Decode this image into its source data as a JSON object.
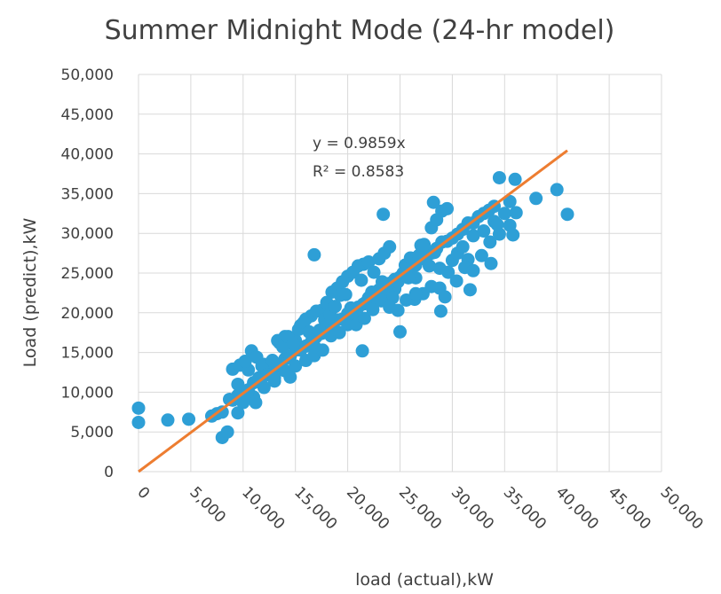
{
  "chart_data": {
    "type": "scatter",
    "title": "Summer Midnight Mode (24-hr model)",
    "xlabel": "load (actual),kW",
    "ylabel": "Load (predict),kW",
    "xlim": [
      0,
      50000
    ],
    "ylim": [
      0,
      50000
    ],
    "x_ticks": [
      "0",
      "5,000",
      "10,000",
      "15,000",
      "20,000",
      "25,000",
      "30,000",
      "35,000",
      "40,000",
      "45,000",
      "50,000"
    ],
    "y_ticks": [
      "0",
      "5,000",
      "10,000",
      "15,000",
      "20,000",
      "25,000",
      "30,000",
      "35,000",
      "40,000",
      "45,000",
      "50,000"
    ],
    "grid": true,
    "legend": "none",
    "point_color": "#2e9fd6",
    "trendline": {
      "color": "#ed7d31",
      "slope": 0.9859,
      "x_range": [
        0,
        41000
      ],
      "equation": "y = 0.9859x",
      "r_squared": "R² = 0.8583"
    },
    "series": [
      {
        "x": [
          0,
          0,
          2800,
          4800,
          7000,
          7500,
          8000,
          8500,
          9000,
          9500,
          10000,
          10500,
          11000,
          11500,
          12000,
          12500,
          13000,
          13500,
          14000,
          14500,
          15000,
          15500,
          16000,
          16500,
          17000,
          17500,
          18000,
          18500,
          19000,
          19500,
          20000,
          20500,
          21000,
          21500,
          22000,
          22500,
          23000,
          23500,
          24000,
          24500,
          25000,
          25500,
          26000,
          26500,
          27000,
          27500,
          28000,
          28500,
          29000,
          29500,
          30000,
          30500,
          31000,
          31500,
          32000,
          32500,
          33000,
          33500,
          34000,
          34500,
          35000,
          35500,
          36000,
          38000,
          40000,
          41000,
          8000,
          8700,
          9500,
          10500,
          12000,
          13500,
          14000,
          15000,
          15500,
          16000,
          16500,
          17000,
          17500,
          18000,
          18500,
          19000,
          19500,
          20000,
          20500,
          21000,
          21500,
          22000,
          22500,
          23000,
          23500,
          24000,
          24500,
          25000,
          25500,
          26000,
          26500,
          27000,
          27500,
          28000,
          28500,
          29000,
          29500,
          30000,
          30500,
          31000,
          31500,
          32000,
          33000,
          34000,
          9000,
          9700,
          10200,
          10800,
          11300,
          11800,
          12300,
          12800,
          13300,
          13800,
          14300,
          14800,
          15300,
          15800,
          16300,
          16800,
          17300,
          17800,
          18300,
          18800,
          19300,
          19800,
          20300,
          20800,
          21300,
          21800,
          22300,
          22800,
          23300,
          23800,
          24300,
          24800,
          25300,
          25800,
          26300,
          26800,
          27300,
          27800,
          28300,
          28800,
          9500,
          10000,
          11000,
          12000,
          13000,
          14000,
          15000,
          16000,
          16800,
          17600,
          18400,
          19200,
          20000,
          20800,
          21600,
          22400,
          23200,
          24000,
          24800,
          25600,
          26400,
          27200,
          28000,
          28800,
          29600,
          30400,
          31200,
          32000,
          32800,
          33600,
          34500,
          35500,
          9800,
          10400,
          11200,
          13000,
          14500,
          16800,
          23400,
          21400,
          25000,
          26500,
          28200,
          29300,
          31700,
          33700,
          34300,
          35800,
          36100,
          28900
        ],
        "y": [
          8000,
          6200,
          6500,
          6600,
          7000,
          7300,
          4300,
          5000,
          9000,
          9600,
          10100,
          10300,
          11200,
          11800,
          12100,
          12700,
          13100,
          13300,
          14200,
          14500,
          15300,
          15300,
          15800,
          16300,
          17000,
          17400,
          17600,
          18400,
          19100,
          19200,
          19900,
          20400,
          20700,
          21100,
          21900,
          22100,
          22900,
          23100,
          23700,
          24200,
          24500,
          25300,
          25600,
          26000,
          26800,
          27300,
          27500,
          28100,
          28900,
          29000,
          29400,
          29900,
          30500,
          31300,
          31300,
          32100,
          32500,
          32900,
          33400,
          37000,
          32500,
          34000,
          36800,
          34400,
          35500,
          32400,
          7500,
          9100,
          11000,
          12800,
          13500,
          16200,
          17000,
          16500,
          18400,
          19200,
          19600,
          20200,
          20300,
          21300,
          22600,
          23100,
          23900,
          24600,
          25100,
          25900,
          26100,
          26400,
          25100,
          26800,
          27500,
          28300,
          23000,
          24400,
          26000,
          26900,
          24400,
          28500,
          27300,
          30700,
          31700,
          32800,
          33100,
          26600,
          27500,
          28300,
          26700,
          29700,
          30300,
          31500,
          12900,
          13400,
          13900,
          15200,
          14400,
          13300,
          12200,
          14000,
          16500,
          15700,
          17000,
          16100,
          17900,
          18800,
          17600,
          15800,
          17800,
          19100,
          19800,
          20800,
          22200,
          22300,
          20600,
          19200,
          24100,
          21400,
          22600,
          21700,
          23900,
          22600,
          21900,
          23900,
          25000,
          24400,
          26800,
          27200,
          28600,
          25900,
          27600,
          25600,
          7400,
          8700,
          9400,
          10600,
          11400,
          12700,
          13300,
          14000,
          14600,
          15300,
          17100,
          17500,
          18500,
          18500,
          19300,
          20400,
          21500,
          20700,
          20300,
          21600,
          21700,
          22400,
          23300,
          23100,
          25100,
          24000,
          25700,
          25300,
          27200,
          28900,
          29900,
          31000,
          10300,
          9600,
          8700,
          11800,
          11900,
          27300,
          32400,
          15200,
          17600,
          22400,
          33900,
          22000,
          22900,
          26200,
          31100,
          29800,
          32600,
          20200
        ]
      }
    ]
  }
}
